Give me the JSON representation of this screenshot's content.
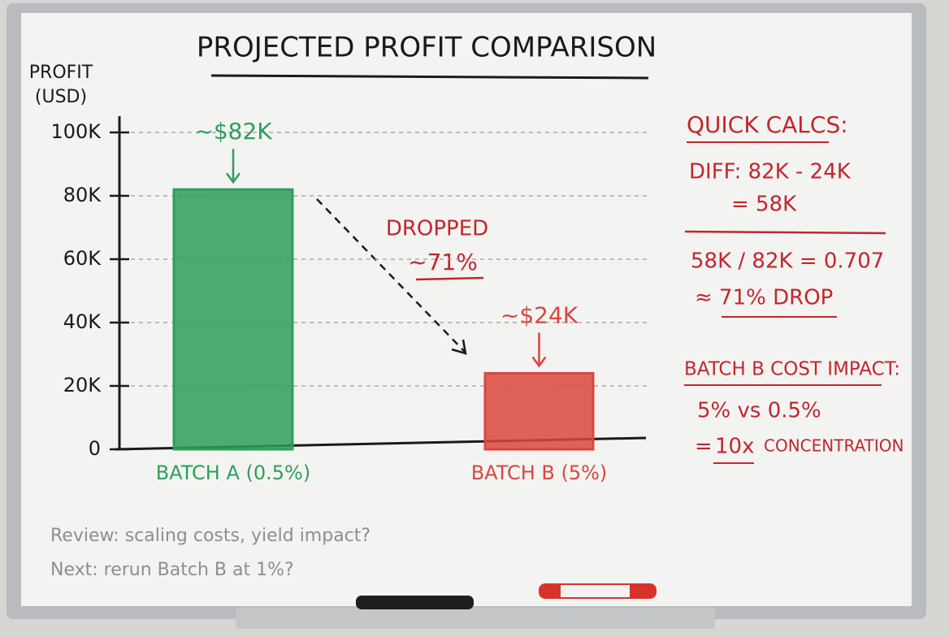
{
  "chart_data": {
    "type": "bar",
    "title": "PROJECTED PROFIT COMPARISON",
    "y_label": "PROFIT (USD)",
    "categories": [
      "BATCH A (0.5%)",
      "BATCH B (5%)"
    ],
    "values": [
      82000,
      24000
    ],
    "value_labels": [
      "~$82K",
      "~$24K"
    ],
    "colors": [
      "#2f9e5a",
      "#d9463f"
    ],
    "ylim": [
      0,
      100000
    ],
    "yticks": [
      0,
      {
        "value": 20000,
        "label": "20K"
      },
      {
        "value": 40000,
        "label": "40K"
      },
      {
        "value": 60000,
        "label": "60K"
      },
      {
        "value": 80000,
        "label": "80K"
      },
      {
        "value": 100000,
        "label": "100K"
      }
    ],
    "grid": true,
    "annotations": {
      "drop_title": "DROPPED",
      "drop_value": "~71%"
    },
    "side_notes": {
      "heading": "QUICK CALCS:",
      "diff": "DIFF: 82K - 24K",
      "diff_result": "= 58K",
      "ratio": "58K / 82K = 0.707",
      "ratio_result": "≈ 71% DROP",
      "impact_heading": "BATCH B COST IMPACT:",
      "impact_compare": "5% vs 0.5%",
      "impact_prefix": "=",
      "impact_factor": "10x",
      "impact_suffix": "CONCENTRATION"
    },
    "footer_notes": [
      "Review: scaling costs, yield impact?",
      "Next: rerun Batch B at 1%?"
    ]
  }
}
